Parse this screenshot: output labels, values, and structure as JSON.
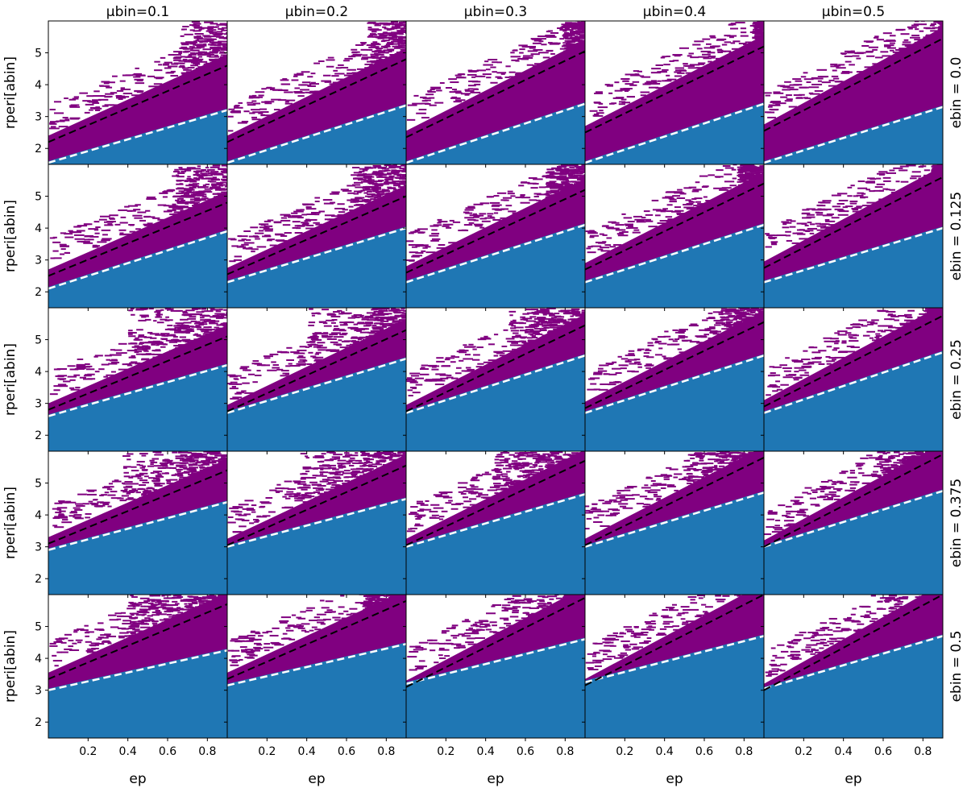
{
  "chart_data": {
    "type": "heatmap",
    "layout": "5 rows x 5 columns grid of panels",
    "column_titles": [
      "μbin=0.1",
      "μbin=0.2",
      "μbin=0.3",
      "μbin=0.4",
      "μbin=0.5"
    ],
    "row_titles": [
      "ebin = 0.0",
      "ebin = 0.125",
      "ebin = 0.25",
      "ebin = 0.375",
      "ebin = 0.5"
    ],
    "xlabel": "ep",
    "ylabel": "rperi[abin]",
    "xlim": [
      0.0,
      0.9
    ],
    "ylim": [
      1.5,
      6.0
    ],
    "x_ticks": [
      "0.2",
      "0.4",
      "0.6",
      "0.8"
    ],
    "y_ticks": [
      "2",
      "3",
      "4",
      "5"
    ],
    "grid": false,
    "colors": {
      "stable_region": "#1f77b4",
      "unstable_region": "#800080",
      "black_line": "#000000",
      "white_line": "#ffffff"
    },
    "panels": [
      [
        {
          "white_line": [
            [
              0.0,
              1.55
            ],
            [
              0.9,
              3.2
            ]
          ],
          "black_line": [
            [
              0.0,
              2.2
            ],
            [
              0.9,
              4.6
            ]
          ],
          "plume_x": 0.68
        },
        {
          "white_line": [
            [
              0.0,
              1.55
            ],
            [
              0.9,
              3.35
            ]
          ],
          "black_line": [
            [
              0.0,
              2.2
            ],
            [
              0.9,
              4.8
            ]
          ],
          "plume_x": 0.72
        },
        {
          "white_line": [
            [
              0.0,
              1.55
            ],
            [
              0.9,
              3.4
            ]
          ],
          "black_line": [
            [
              0.0,
              2.35
            ],
            [
              0.9,
              5.05
            ]
          ],
          "plume_x": 0.8
        },
        {
          "white_line": [
            [
              0.0,
              1.55
            ],
            [
              0.9,
              3.4
            ]
          ],
          "black_line": [
            [
              0.0,
              2.5
            ],
            [
              0.9,
              5.2
            ]
          ],
          "plume_x": 0.85
        },
        {
          "white_line": [
            [
              0.0,
              1.55
            ],
            [
              0.9,
              3.3
            ]
          ],
          "black_line": [
            [
              0.0,
              2.55
            ],
            [
              0.9,
              5.45
            ]
          ],
          "plume_x": 0.88
        }
      ],
      [
        {
          "white_line": [
            [
              0.0,
              2.1
            ],
            [
              0.9,
              3.9
            ]
          ],
          "black_line": [
            [
              0.0,
              2.5
            ],
            [
              0.9,
              4.8
            ]
          ],
          "plume_x": 0.65
        },
        {
          "white_line": [
            [
              0.0,
              2.3
            ],
            [
              0.9,
              4.0
            ]
          ],
          "black_line": [
            [
              0.0,
              2.55
            ],
            [
              0.9,
              5.0
            ]
          ],
          "plume_x": 0.65
        },
        {
          "white_line": [
            [
              0.0,
              2.3
            ],
            [
              0.9,
              4.1
            ]
          ],
          "black_line": [
            [
              0.0,
              2.6
            ],
            [
              0.9,
              5.2
            ]
          ],
          "plume_x": 0.72
        },
        {
          "white_line": [
            [
              0.0,
              2.3
            ],
            [
              0.9,
              4.1
            ]
          ],
          "black_line": [
            [
              0.0,
              2.7
            ],
            [
              0.9,
              5.4
            ]
          ],
          "plume_x": 0.78
        },
        {
          "white_line": [
            [
              0.0,
              2.3
            ],
            [
              0.9,
              4.0
            ]
          ],
          "black_line": [
            [
              0.0,
              2.75
            ],
            [
              0.9,
              5.6
            ]
          ],
          "plume_x": 0.85
        }
      ],
      [
        {
          "white_line": [
            [
              0.0,
              2.6
            ],
            [
              0.9,
              4.2
            ]
          ],
          "black_line": [
            [
              0.0,
              2.8
            ],
            [
              0.9,
              5.1
            ]
          ],
          "plume_x": 0.45
        },
        {
          "white_line": [
            [
              0.0,
              2.7
            ],
            [
              0.9,
              4.4
            ]
          ],
          "black_line": [
            [
              0.0,
              2.75
            ],
            [
              0.9,
              5.3
            ]
          ],
          "plume_x": 0.45
        },
        {
          "white_line": [
            [
              0.0,
              2.7
            ],
            [
              0.9,
              4.5
            ]
          ],
          "black_line": [
            [
              0.0,
              2.75
            ],
            [
              0.9,
              5.45
            ]
          ],
          "plume_x": 0.55
        },
        {
          "white_line": [
            [
              0.0,
              2.7
            ],
            [
              0.9,
              4.5
            ]
          ],
          "black_line": [
            [
              0.0,
              2.85
            ],
            [
              0.9,
              5.55
            ]
          ],
          "plume_x": 0.7
        },
        {
          "white_line": [
            [
              0.0,
              2.7
            ],
            [
              0.9,
              4.6
            ]
          ],
          "black_line": [
            [
              0.0,
              2.9
            ],
            [
              0.9,
              5.75
            ]
          ],
          "plume_x": 0.82
        }
      ],
      [
        {
          "white_line": [
            [
              0.0,
              2.9
            ],
            [
              0.9,
              4.4
            ]
          ],
          "black_line": [
            [
              0.0,
              3.1
            ],
            [
              0.9,
              5.4
            ]
          ],
          "plume_x": 0.42
        },
        {
          "white_line": [
            [
              0.0,
              3.0
            ],
            [
              0.9,
              4.5
            ]
          ],
          "black_line": [
            [
              0.0,
              3.05
            ],
            [
              0.9,
              5.55
            ]
          ],
          "plume_x": 0.42
        },
        {
          "white_line": [
            [
              0.0,
              3.0
            ],
            [
              0.9,
              4.65
            ]
          ],
          "black_line": [
            [
              0.0,
              3.05
            ],
            [
              0.9,
              5.7
            ]
          ],
          "plume_x": 0.48
        },
        {
          "white_line": [
            [
              0.0,
              3.0
            ],
            [
              0.9,
              4.7
            ]
          ],
          "black_line": [
            [
              0.0,
              3.05
            ],
            [
              0.9,
              5.8
            ]
          ],
          "plume_x": 0.55
        },
        {
          "white_line": [
            [
              0.0,
              3.0
            ],
            [
              0.9,
              4.75
            ]
          ],
          "black_line": [
            [
              0.0,
              3.0
            ],
            [
              0.9,
              5.9
            ]
          ],
          "plume_x": 0.6
        }
      ],
      [
        {
          "white_line": [
            [
              0.0,
              3.0
            ],
            [
              0.9,
              4.25
            ]
          ],
          "black_line": [
            [
              0.0,
              3.35
            ],
            [
              0.9,
              5.7
            ]
          ],
          "plume_x": 0.45
        },
        {
          "white_line": [
            [
              0.0,
              3.15
            ],
            [
              0.9,
              4.45
            ]
          ],
          "black_line": [
            [
              0.0,
              3.35
            ],
            [
              0.9,
              5.8
            ]
          ],
          "plume_x": 0.7
        },
        {
          "white_line": [
            [
              0.0,
              3.2
            ],
            [
              0.9,
              4.6
            ]
          ],
          "black_line": [
            [
              0.0,
              3.1
            ],
            [
              0.9,
              5.9
            ]
          ],
          "plume_x": 0.8
        },
        {
          "white_line": [
            [
              0.0,
              3.25
            ],
            [
              0.9,
              4.7
            ]
          ],
          "black_line": [
            [
              0.0,
              3.15
            ],
            [
              0.9,
              6.0
            ]
          ],
          "plume_x": 0.85
        },
        {
          "white_line": [
            [
              0.0,
              3.05
            ],
            [
              0.9,
              4.7
            ]
          ],
          "black_line": [
            [
              0.0,
              3.0
            ],
            [
              0.9,
              6.0
            ]
          ],
          "plume_x": 0.85
        }
      ]
    ]
  }
}
